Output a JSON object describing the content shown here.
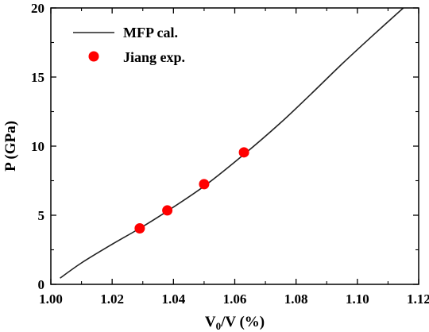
{
  "chart_data": {
    "type": "scatter",
    "title": "",
    "xlabel": {
      "main": "V",
      "sub": "0",
      "rest": "/V (%)"
    },
    "ylabel": "P (GPa)",
    "xlim": [
      1.0,
      1.12
    ],
    "ylim": [
      0,
      20
    ],
    "xticks": [
      "1.00",
      "1.02",
      "1.04",
      "1.06",
      "1.08",
      "1.10",
      "1.12"
    ],
    "xtick_values": [
      1.0,
      1.02,
      1.04,
      1.06,
      1.08,
      1.1,
      1.12
    ],
    "yticks": [
      "0",
      "5",
      "10",
      "15",
      "20"
    ],
    "ytick_values": [
      0,
      5,
      10,
      15,
      20
    ],
    "legend_position": "top-left",
    "series": [
      {
        "name": "MFP cal.",
        "kind": "line",
        "color": "#222222",
        "x": [
          1.003,
          1.01,
          1.02,
          1.029,
          1.038,
          1.05,
          1.063,
          1.075,
          1.085,
          1.095,
          1.105,
          1.115
        ],
        "y": [
          0.45,
          1.55,
          2.9,
          4.05,
          5.3,
          7.1,
          9.4,
          11.7,
          13.8,
          15.95,
          18.0,
          20.0
        ]
      },
      {
        "name": "Jiang exp.",
        "kind": "scatter",
        "color": "#ff0000",
        "x": [
          1.029,
          1.038,
          1.05,
          1.063
        ],
        "y": [
          4.05,
          5.35,
          7.25,
          9.55
        ]
      }
    ]
  }
}
